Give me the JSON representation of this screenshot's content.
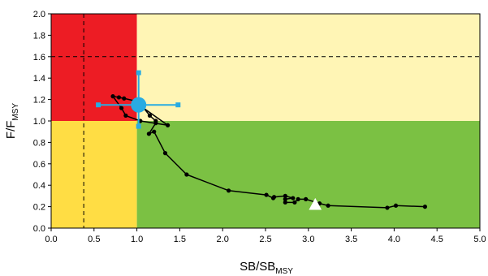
{
  "chart_data": {
    "type": "scatter",
    "title": "",
    "xlabel_main": "SB/SB",
    "xlabel_sub": "MSY",
    "ylabel_main": "F/F",
    "ylabel_sub": "MSY",
    "xlim": [
      0,
      5
    ],
    "ylim": [
      0,
      2
    ],
    "xticks": [
      0,
      0.5,
      1,
      1.5,
      2,
      2.5,
      3,
      3.5,
      4,
      4.5,
      5
    ],
    "yticks": [
      0,
      0.2,
      0.4,
      0.6,
      0.8,
      1,
      1.2,
      1.4,
      1.6,
      1.8,
      2
    ],
    "tick_decimals": 1,
    "grid": false,
    "colors": {
      "red": "#ed1c24",
      "light_yellow": "#fff5b5",
      "yellow": "#ffdd44",
      "green": "#7bc143",
      "trajectory": "#000000",
      "current": "#29abe2",
      "start_marker": "#ffffff"
    },
    "zones": [
      {
        "x": [
          0,
          1
        ],
        "y": [
          1,
          2
        ],
        "color": "red"
      },
      {
        "x": [
          1,
          5
        ],
        "y": [
          1,
          2
        ],
        "color": "light_yellow"
      },
      {
        "x": [
          0,
          1
        ],
        "y": [
          0,
          1
        ],
        "color": "yellow"
      },
      {
        "x": [
          1,
          5
        ],
        "y": [
          0,
          1
        ],
        "color": "green"
      }
    ],
    "reference_lines": [
      {
        "orientation": "vertical",
        "value": 0.38,
        "style": "dashed"
      },
      {
        "orientation": "horizontal",
        "value": 1.6,
        "style": "dashed"
      }
    ],
    "trajectory": [
      {
        "x": 4.36,
        "y": 0.2
      },
      {
        "x": 4.02,
        "y": 0.21
      },
      {
        "x": 3.92,
        "y": 0.19
      },
      {
        "x": 3.23,
        "y": 0.21
      },
      {
        "x": 3.13,
        "y": 0.23
      },
      {
        "x": 2.97,
        "y": 0.27
      },
      {
        "x": 2.88,
        "y": 0.27
      },
      {
        "x": 2.84,
        "y": 0.24
      },
      {
        "x": 2.73,
        "y": 0.24
      },
      {
        "x": 2.73,
        "y": 0.27
      },
      {
        "x": 2.82,
        "y": 0.28
      },
      {
        "x": 2.73,
        "y": 0.3
      },
      {
        "x": 2.6,
        "y": 0.29
      },
      {
        "x": 2.59,
        "y": 0.28
      },
      {
        "x": 2.51,
        "y": 0.31
      },
      {
        "x": 2.07,
        "y": 0.35
      },
      {
        "x": 1.58,
        "y": 0.5
      },
      {
        "x": 1.33,
        "y": 0.7
      },
      {
        "x": 1.2,
        "y": 0.9
      },
      {
        "x": 1.14,
        "y": 0.88
      },
      {
        "x": 1.22,
        "y": 0.98
      },
      {
        "x": 1.22,
        "y": 1.0
      },
      {
        "x": 1.15,
        "y": 1.05
      },
      {
        "x": 1.02,
        "y": 1.18
      },
      {
        "x": 0.85,
        "y": 1.21
      },
      {
        "x": 0.79,
        "y": 1.22
      },
      {
        "x": 0.72,
        "y": 1.23
      },
      {
        "x": 0.82,
        "y": 1.12
      },
      {
        "x": 0.87,
        "y": 1.05
      },
      {
        "x": 1.04,
        "y": 1.0
      },
      {
        "x": 1.36,
        "y": 0.96
      },
      {
        "x": 1.06,
        "y": 1.13
      }
    ],
    "start_point": {
      "x": 3.08,
      "y": 0.22
    },
    "current_point": {
      "x": 1.02,
      "y": 1.15,
      "x_interval": [
        0.55,
        1.48
      ],
      "y_interval": [
        0.95,
        1.45
      ]
    }
  }
}
